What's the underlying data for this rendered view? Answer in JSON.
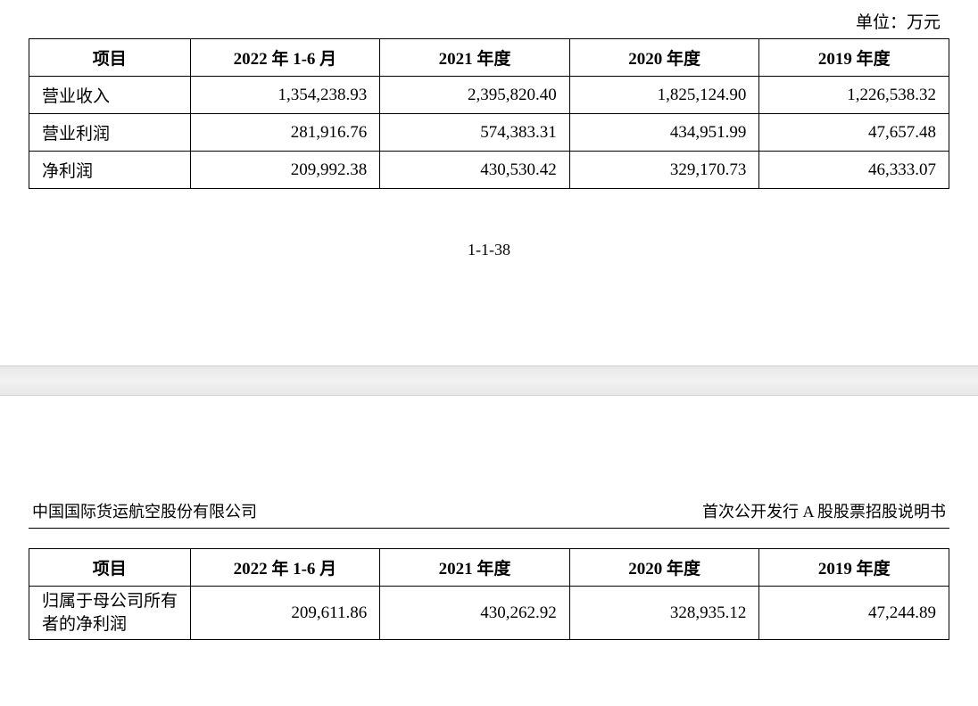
{
  "unit_label": "单位：万元",
  "page_number": "1-1-38",
  "table1": {
    "headers": {
      "item": "项目",
      "col1": "2022 年 1-6 月",
      "col2": "2021 年度",
      "col3": "2020 年度",
      "col4": "2019 年度"
    },
    "rows": [
      {
        "label": "营业收入",
        "c1": "1,354,238.93",
        "c2": "2,395,820.40",
        "c3": "1,825,124.90",
        "c4": "1,226,538.32"
      },
      {
        "label": "营业利润",
        "c1": "281,916.76",
        "c2": "574,383.31",
        "c3": "434,951.99",
        "c4": "47,657.48"
      },
      {
        "label": "净利润",
        "c1": "209,992.38",
        "c2": "430,530.42",
        "c3": "329,170.73",
        "c4": "46,333.07"
      }
    ]
  },
  "footer": {
    "company": "中国国际货运航空股份有限公司",
    "doc_title": "首次公开发行 A 股股票招股说明书"
  },
  "table2": {
    "headers": {
      "item": "项目",
      "col1": "2022 年 1-6 月",
      "col2": "2021 年度",
      "col3": "2020 年度",
      "col4": "2019 年度"
    },
    "rows": [
      {
        "label": "归属于母公司所有者的净利润",
        "c1": "209,611.86",
        "c2": "430,262.92",
        "c3": "328,935.12",
        "c4": "47,244.89"
      }
    ]
  }
}
